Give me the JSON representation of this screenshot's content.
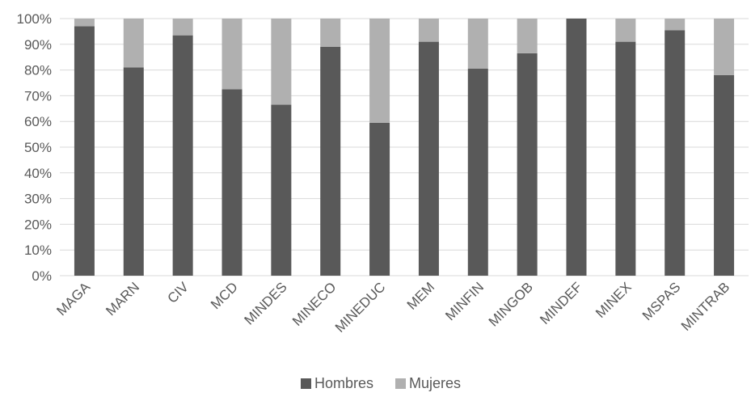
{
  "chart_data": {
    "type": "bar",
    "stacked": true,
    "percent": true,
    "title": "",
    "xlabel": "",
    "ylabel": "",
    "ylim": [
      0,
      100
    ],
    "yticks": [
      "0%",
      "10%",
      "20%",
      "30%",
      "40%",
      "50%",
      "60%",
      "70%",
      "80%",
      "90%",
      "100%"
    ],
    "grid": true,
    "legend_position": "bottom",
    "categories": [
      "MAGA",
      "MARN",
      "CIV",
      "MCD",
      "MINDES",
      "MINECO",
      "MINEDUC",
      "MEM",
      "MINFIN",
      "MINGOB",
      "MINDEF",
      "MINEX",
      "MSPAS",
      "MINTRAB"
    ],
    "series": [
      {
        "name": "Hombres",
        "color": "#595959",
        "values": [
          97,
          81,
          93.5,
          72.5,
          66.5,
          89,
          59.5,
          91,
          80.5,
          86.5,
          100,
          91,
          95.5,
          78
        ]
      },
      {
        "name": "Mujeres",
        "color": "#b0b0b0",
        "values": [
          3,
          19,
          6.5,
          27.5,
          33.5,
          11,
          40.5,
          9,
          19.5,
          13.5,
          0,
          9,
          4.5,
          22
        ]
      }
    ]
  }
}
